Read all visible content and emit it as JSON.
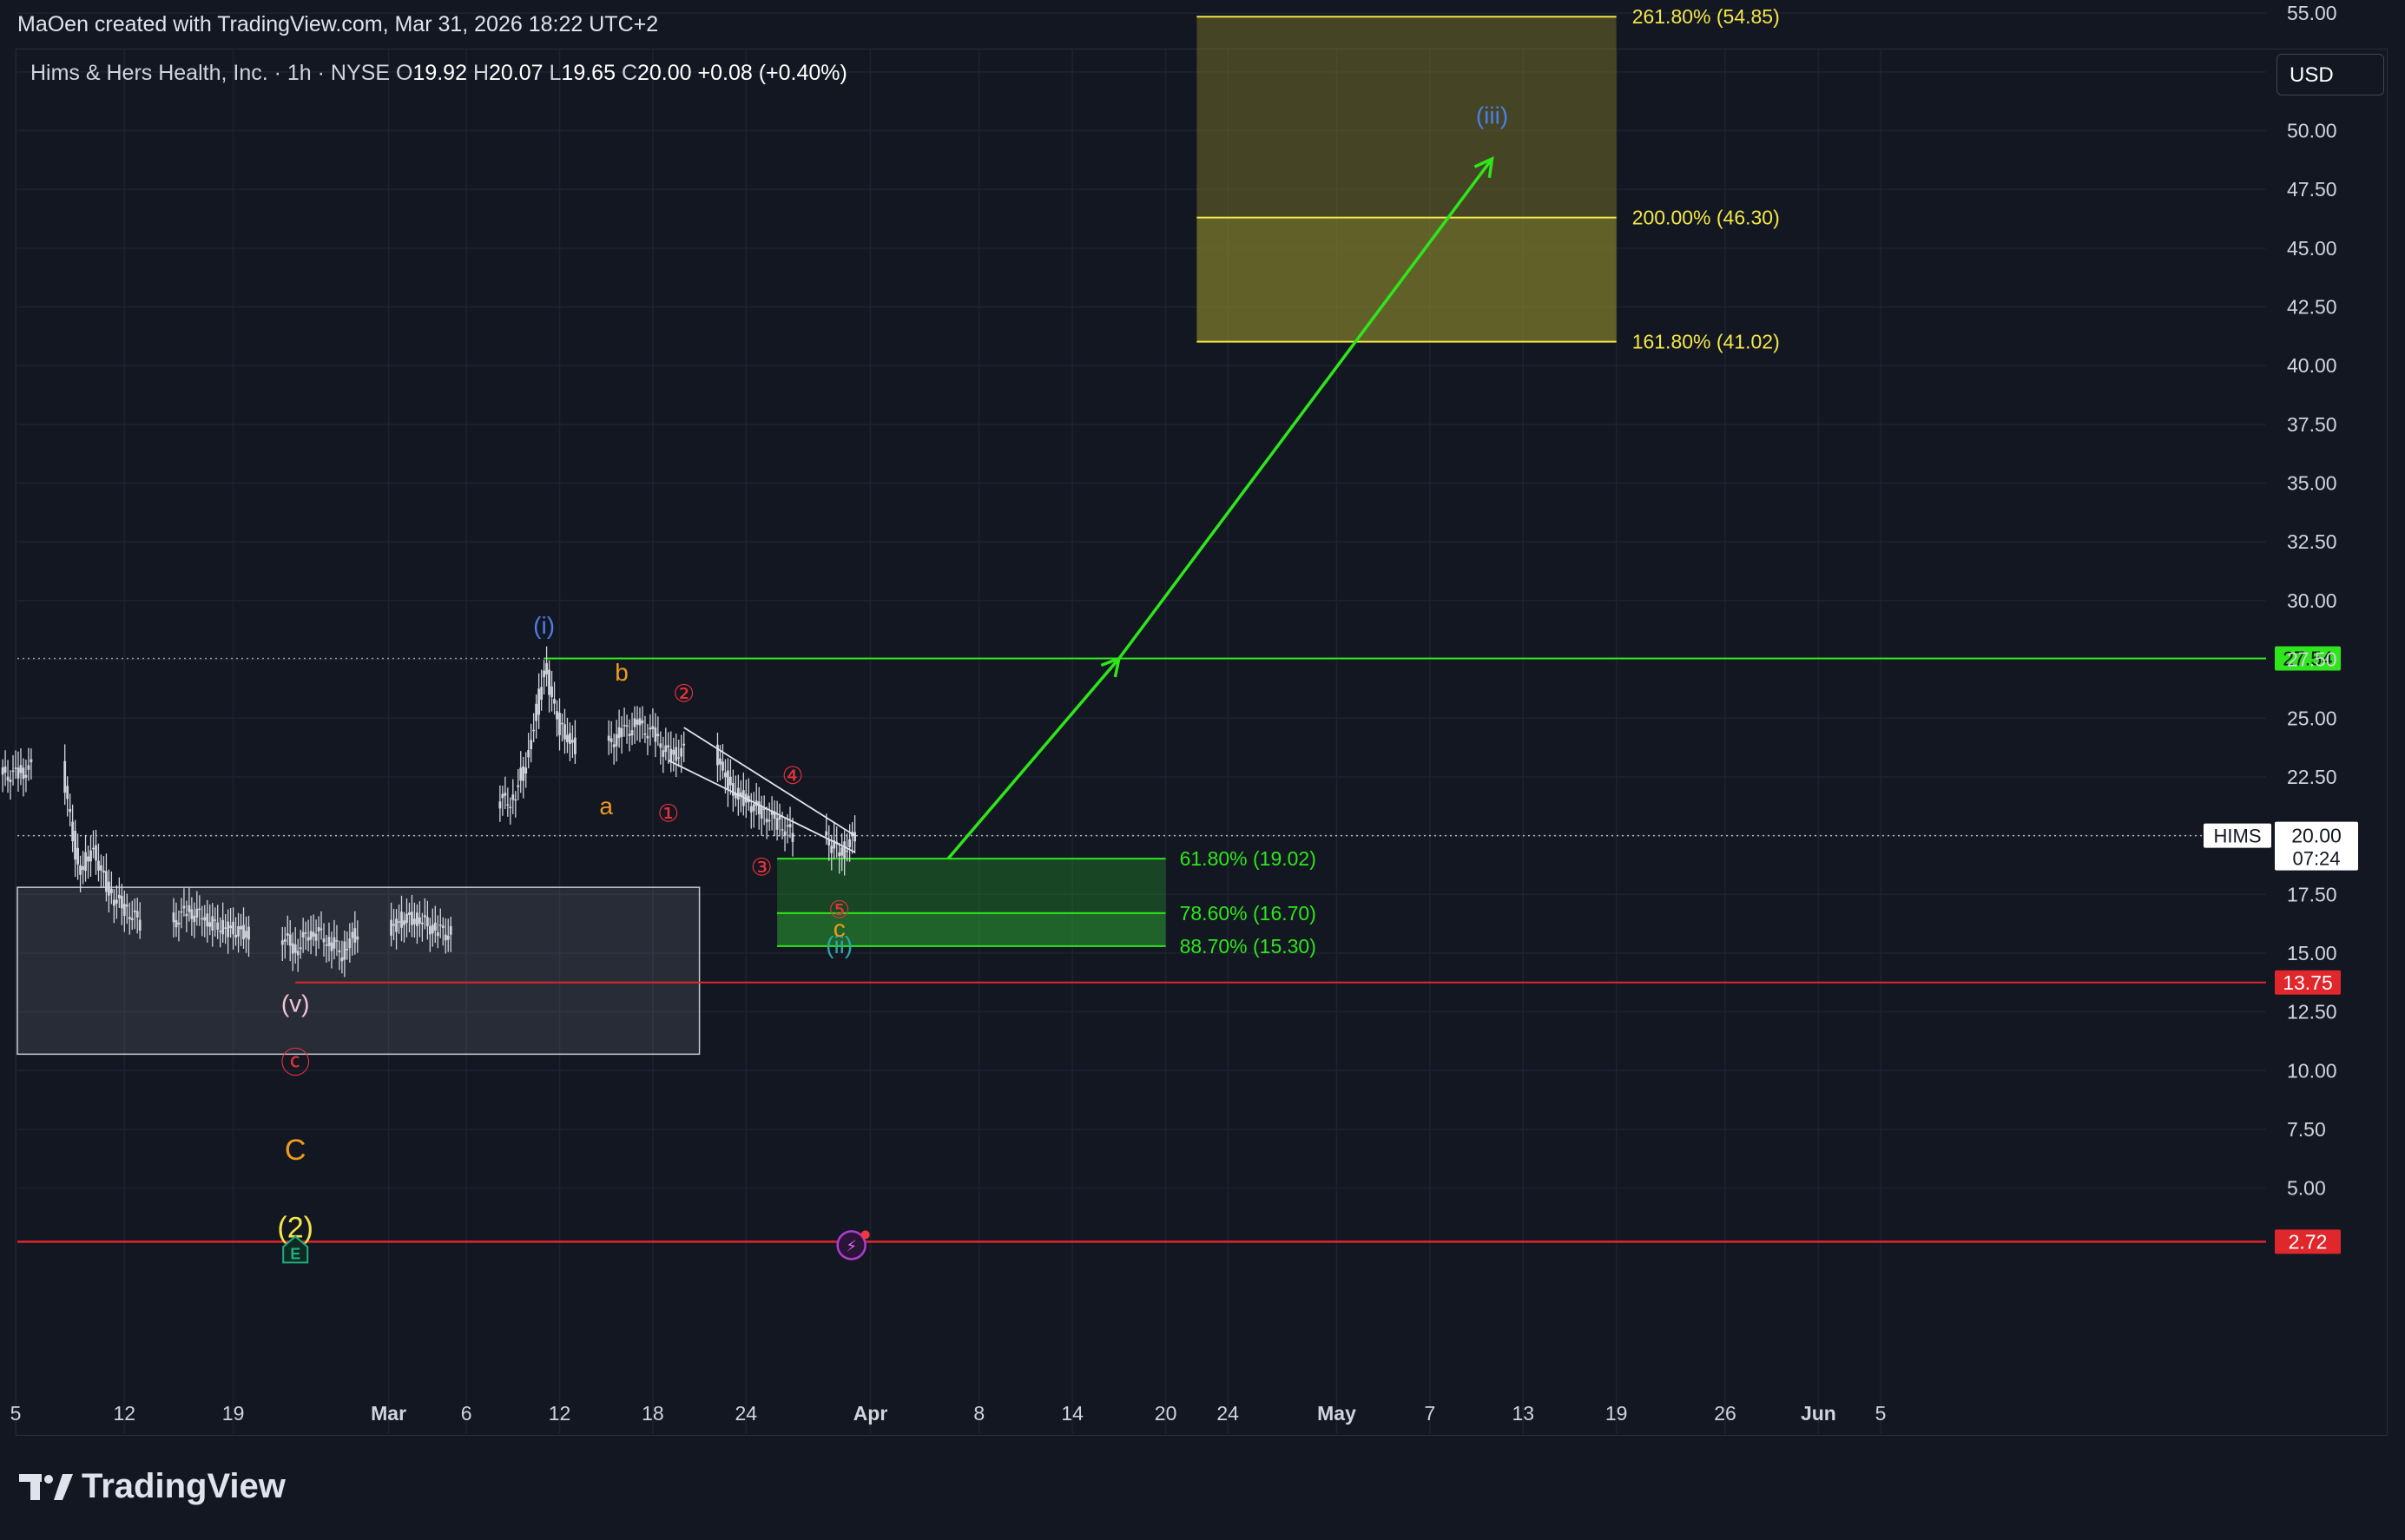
{
  "credit": "MaOen created with TradingView.com, Mar 31, 2026 18:22 UTC+2",
  "legend": {
    "name": "Hims & Hers Health, Inc. · 1h · NYSE",
    "o_label": "O",
    "o_value": "19.92",
    "h_label": "H",
    "h_value": "20.07",
    "l_label": "L",
    "l_value": "19.65",
    "c_label": "C",
    "c_value": "20.00",
    "change": "+0.08 (+0.40%)"
  },
  "currency_button": "USD",
  "footer_logo": "TradingView",
  "colors": {
    "background": "#131722",
    "grid": "#1e2230",
    "candles": "#d1d4dc",
    "green": "#2ee61b",
    "green_line": "#22c02d",
    "red_line": "#e0272c",
    "fib_yellow": "#f2e649",
    "wave_blue": "#4a7ee8",
    "wave_orange": "#f09a1d",
    "wave_red": "#e8323c",
    "wave_pink": "#f4c6d7",
    "wave_yellow": "#f2e649",
    "wave_teal": "#2ca6a4"
  },
  "chart_data": {
    "type": "candlestick",
    "symbol": "HIMS",
    "interval": "1h",
    "ylim": [
      2.0,
      57.0
    ],
    "y_ticks": [
      "55.00",
      "52.50",
      "50.00",
      "47.50",
      "45.00",
      "42.50",
      "40.00",
      "37.50",
      "35.00",
      "32.50",
      "30.00",
      "27.50",
      "25.00",
      "22.50",
      "20.00",
      "17.50",
      "15.00",
      "12.50",
      "10.00",
      "7.50",
      "5.00"
    ],
    "x_ticks": [
      "5",
      "12",
      "19",
      "Mar",
      "6",
      "12",
      "18",
      "24",
      "Apr",
      "8",
      "14",
      "20",
      "24",
      "May",
      "7",
      "13",
      "19",
      "26",
      "Jun",
      "5"
    ],
    "last_price": {
      "symbol": "HIMS",
      "price": "20.00",
      "countdown": "07:24",
      "value": 20.0
    },
    "price_lines": [
      {
        "label": "27.54",
        "value": 27.54,
        "color": "#2ee61b"
      },
      {
        "label": "13.75",
        "value": 13.75,
        "color": "#e0272c"
      },
      {
        "label": "2.72",
        "value": 2.72,
        "color": "#e0272c"
      }
    ],
    "fib_targets": [
      {
        "label": "261.80% (54.85)",
        "value": 54.85
      },
      {
        "label": "200.00% (46.30)",
        "value": 46.3
      },
      {
        "label": "161.80% (41.02)",
        "value": 41.02
      }
    ],
    "fib_retracements": [
      {
        "label": "61.80% (19.02)",
        "value": 19.02
      },
      {
        "label": "78.60% (16.70)",
        "value": 16.7
      },
      {
        "label": "88.70% (15.30)",
        "value": 15.3
      }
    ],
    "consolidation_box": {
      "top": 17.8,
      "bottom": 10.7
    },
    "wave_labels": [
      {
        "text": "(i)",
        "x": "Mar 11",
        "y": 28.6,
        "color": "#4a7ee8"
      },
      {
        "text": "b",
        "x": "Mar 16",
        "y": 26.6,
        "color": "#f09a1d"
      },
      {
        "text": "a",
        "x": "Mar 15",
        "y": 20.9,
        "color": "#f09a1d"
      },
      {
        "text": "②",
        "x": "Mar 20",
        "y": 25.7,
        "color": "#e8323c"
      },
      {
        "text": "①",
        "x": "Mar 19",
        "y": 20.6,
        "color": "#e8323c"
      },
      {
        "text": "④",
        "x": "Mar 27",
        "y": 22.2,
        "color": "#e8323c"
      },
      {
        "text": "③",
        "x": "Mar 25",
        "y": 18.3,
        "color": "#e8323c"
      },
      {
        "text": "⑤",
        "x": "Mar 30",
        "y": 16.5,
        "color": "#e8323c"
      },
      {
        "text": "c",
        "x": "Mar 30",
        "y": 15.7,
        "color": "#f09a1d"
      },
      {
        "text": "(ii)",
        "x": "Mar 30",
        "y": 15.0,
        "color": "#2ca6a4"
      },
      {
        "text": "(iii)",
        "x": "May 11",
        "y": 50.3,
        "color": "#4a7ee8"
      },
      {
        "text": "(v)",
        "x": "Feb 23",
        "y": 12.5,
        "color": "#f4c6d7"
      },
      {
        "text": "ⓒ",
        "x": "Feb 23",
        "y": 9.9,
        "color": "#e8323c"
      },
      {
        "text": "C",
        "x": "Feb 23",
        "y": 6.2,
        "color": "#f09a1d"
      },
      {
        "text": "(2)",
        "x": "Feb 23",
        "y": 2.9,
        "color": "#f2e649"
      }
    ],
    "projection_arrows": [
      {
        "from": {
          "x": "Apr 6",
          "y": 19.02
        },
        "to": {
          "x": "Apr 17",
          "y": 27.54
        }
      },
      {
        "from": {
          "x": "Apr 17",
          "y": 27.54
        },
        "to": {
          "x": "May 11",
          "y": 48.8
        }
      }
    ],
    "price_path": {
      "description": "hourly closes by trading day (approx.)",
      "points": [
        {
          "x": "Feb 5",
          "y": 22.6
        },
        {
          "x": "Feb 6",
          "y": 22.9
        },
        {
          "x": "Feb 9",
          "y": 18.5
        },
        {
          "x": "Feb 10",
          "y": 19.4
        },
        {
          "x": "Feb 11",
          "y": 17.6
        },
        {
          "x": "Feb 12",
          "y": 16.9
        },
        {
          "x": "Feb 13",
          "y": 16.3
        },
        {
          "x": "Feb 16",
          "y": 16.8
        },
        {
          "x": "Feb 17",
          "y": 16.5
        },
        {
          "x": "Feb 18",
          "y": 16.1
        },
        {
          "x": "Feb 19",
          "y": 16.0
        },
        {
          "x": "Feb 20",
          "y": 15.8
        },
        {
          "x": "Feb 23",
          "y": 15.2
        },
        {
          "x": "Feb 24",
          "y": 16.0
        },
        {
          "x": "Feb 25",
          "y": 15.6
        },
        {
          "x": "Feb 26",
          "y": 15.0
        },
        {
          "x": "Feb 27",
          "y": 16.0
        },
        {
          "x": "Mar 2",
          "y": 16.5
        },
        {
          "x": "Mar 3",
          "y": 16.4
        },
        {
          "x": "Mar 4",
          "y": 16.0
        },
        {
          "x": "Mar 5",
          "y": 15.8
        },
        {
          "x": "Mar 9",
          "y": 21.5
        },
        {
          "x": "Mar 10",
          "y": 23.6
        },
        {
          "x": "Mar 11",
          "y": 27.2
        },
        {
          "x": "Mar 12",
          "y": 24.6
        },
        {
          "x": "Mar 13",
          "y": 23.8
        },
        {
          "x": "Mar 16",
          "y": 24.4
        },
        {
          "x": "Mar 17",
          "y": 24.7
        },
        {
          "x": "Mar 18",
          "y": 24.3
        },
        {
          "x": "Mar 19",
          "y": 23.4
        },
        {
          "x": "Mar 20",
          "y": 23.6
        },
        {
          "x": "Mar 23",
          "y": 22.0
        },
        {
          "x": "Mar 24",
          "y": 21.5
        },
        {
          "x": "Mar 25",
          "y": 21.0
        },
        {
          "x": "Mar 26",
          "y": 20.6
        },
        {
          "x": "Mar 27",
          "y": 20.0
        },
        {
          "x": "Mar 30",
          "y": 19.2
        },
        {
          "x": "Mar 31",
          "y": 20.0
        }
      ]
    }
  }
}
